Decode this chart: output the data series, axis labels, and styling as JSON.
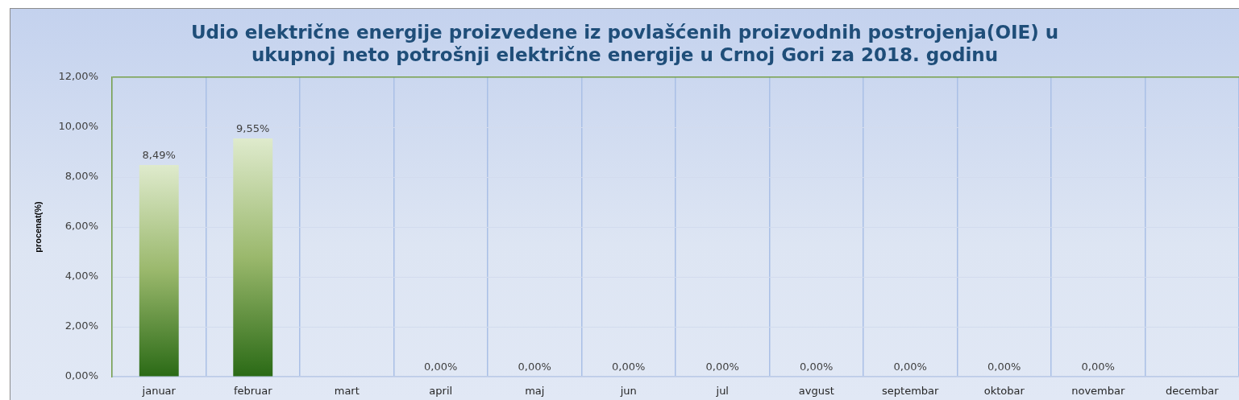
{
  "chart_data": {
    "type": "bar",
    "title": "Udio električne energije proizvedene iz povlašćenih proizvodnih postrojenja(OIE) u ukupnoj neto potrošnji električne energije u Crnoj Gori za 2018. godinu",
    "ylabel": "procenat(%)",
    "categories": [
      "januar",
      "februar",
      "mart",
      "april",
      "maj",
      "jun",
      "jul",
      "avgust",
      "septembar",
      "oktobar",
      "novembar",
      "decembar"
    ],
    "values": [
      8.49,
      9.55,
      null,
      0,
      0,
      0,
      0,
      0,
      0,
      0,
      0,
      null
    ],
    "value_labels": [
      "8,49%",
      "9,55%",
      null,
      "0,00%",
      "0,00%",
      "0,00%",
      "0,00%",
      "0,00%",
      "0,00%",
      "0,00%",
      "0,00%",
      null
    ],
    "color": "#9ab86c",
    "ylim": [
      0,
      12
    ],
    "yticks": [
      {
        "value": 0,
        "label": "0,00%"
      },
      {
        "value": 2,
        "label": "2,00%"
      },
      {
        "value": 4,
        "label": "4,00%"
      },
      {
        "value": 6,
        "label": "6,00%"
      },
      {
        "value": 8,
        "label": "8,00%"
      },
      {
        "value": 10,
        "label": "10,00%"
      },
      {
        "value": 12,
        "label": "12,00%"
      }
    ],
    "grid": true
  }
}
